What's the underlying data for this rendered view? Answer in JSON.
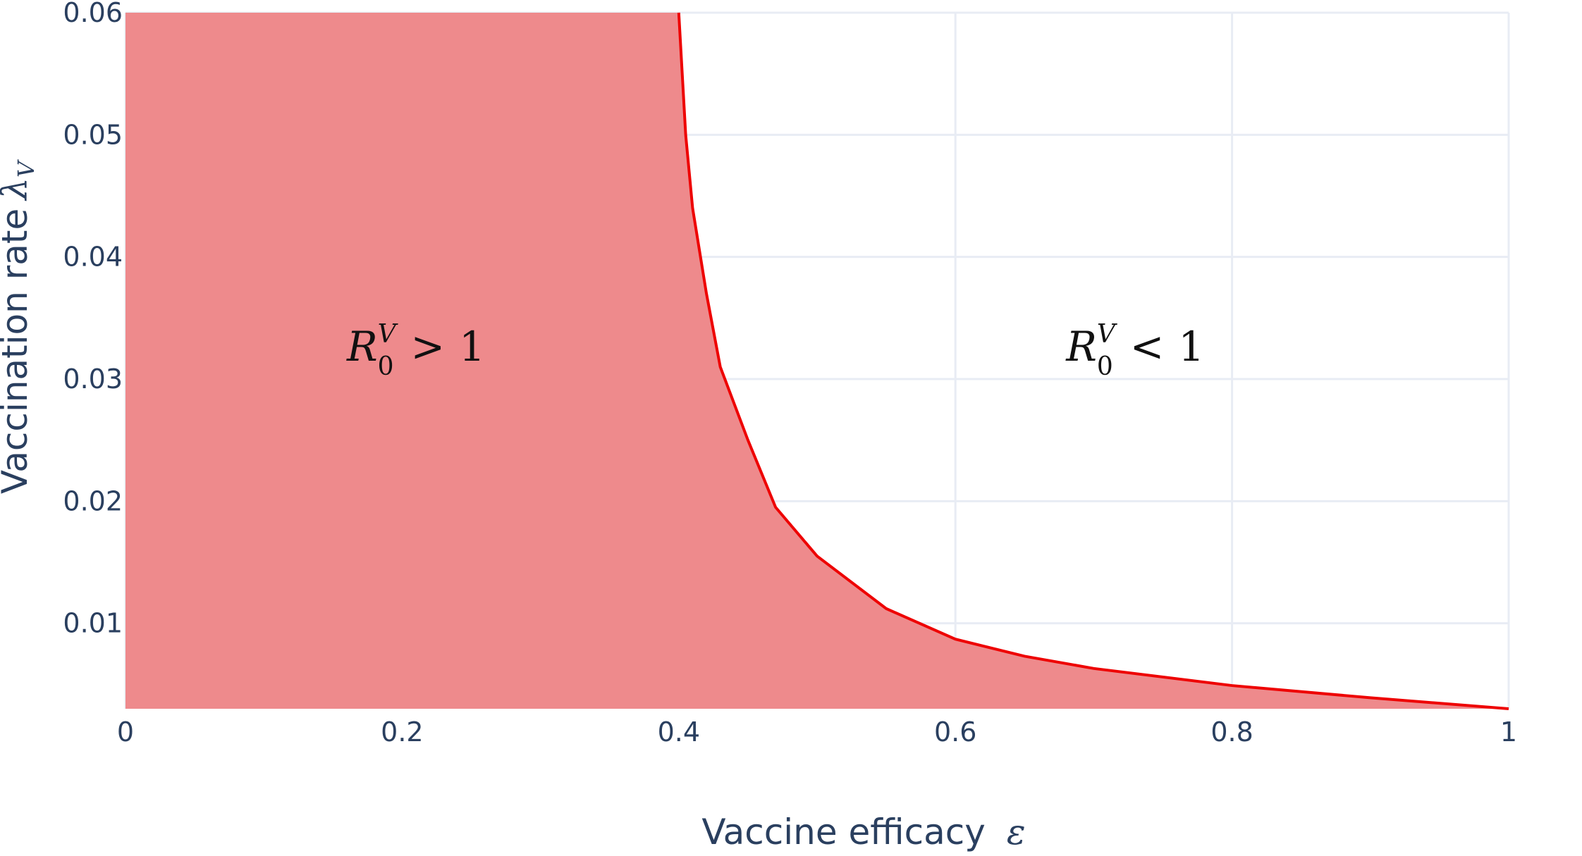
{
  "chart_data": {
    "type": "area",
    "xlabel": "Vaccine efficacy",
    "xlabel_symbol": "ε",
    "ylabel": "Vaccination rate",
    "ylabel_symbol": "λ",
    "ylabel_symbol_subscript": "V",
    "xlim": [
      0,
      1
    ],
    "ylim": [
      0.003,
      0.06
    ],
    "xticks": [
      0,
      0.2,
      0.4,
      0.6,
      0.8,
      1
    ],
    "xtick_labels": [
      "0",
      "0.2",
      "0.4",
      "0.6",
      "0.8",
      "1"
    ],
    "yticks": [
      0.01,
      0.02,
      0.03,
      0.04,
      0.05,
      0.06
    ],
    "ytick_labels": [
      "0.01",
      "0.02",
      "0.03",
      "0.04",
      "0.05",
      "0.06"
    ],
    "grid": true,
    "series": [
      {
        "x": [
          0.4,
          0.405,
          0.41,
          0.42,
          0.43,
          0.45,
          0.47,
          0.5,
          0.55,
          0.6,
          0.65,
          0.7,
          0.8,
          0.9,
          1.0
        ],
        "y": [
          0.06,
          0.05,
          0.044,
          0.037,
          0.031,
          0.025,
          0.0195,
          0.0155,
          0.0112,
          0.0087,
          0.0073,
          0.0063,
          0.0049,
          0.0039,
          0.003
        ],
        "color": "#ee0000",
        "fill_color": "#ee8a8c"
      }
    ],
    "annotations": [
      {
        "base": "R",
        "sub": "0",
        "sup": "V",
        "rel": ">",
        "rhs": "1",
        "x": 0.21,
        "y": 0.0315
      },
      {
        "base": "R",
        "sub": "0",
        "sup": "V",
        "rel": "<",
        "rhs": "1",
        "x": 0.73,
        "y": 0.0315
      }
    ]
  }
}
